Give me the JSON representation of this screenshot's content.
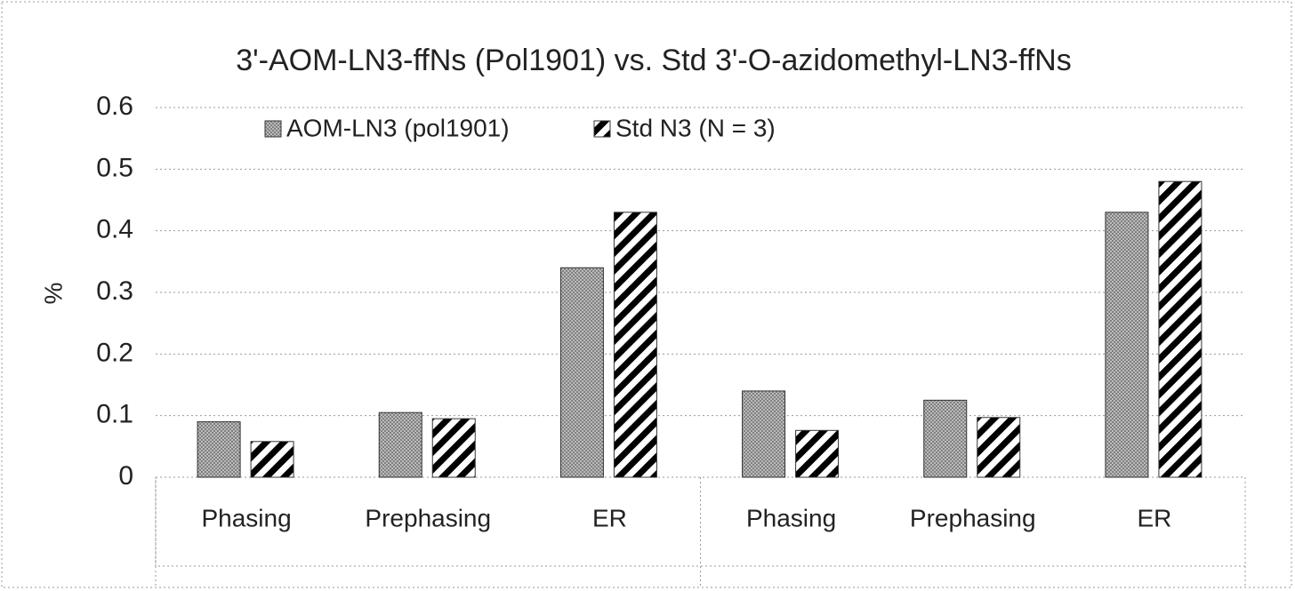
{
  "chart_data": {
    "type": "bar",
    "title": "3'-AOM-LN3-ffNs (Pol1901) vs. Std 3'-O-azidomethyl-LN3-ffNs",
    "y_label": "%",
    "categories": [
      "Phasing",
      "Prephasing",
      "ER",
      "Phasing",
      "Prephasing",
      "ER"
    ],
    "series": [
      {
        "name": "AOM-LN3 (pol1901)",
        "color": "#808080",
        "values": [
          0.09,
          0.105,
          0.34,
          0.14,
          0.125,
          0.43
        ]
      },
      {
        "name": "Std N3 (N = 3)",
        "color": "#000000",
        "values": [
          0.058,
          0.095,
          0.43,
          0.076,
          0.097,
          0.48
        ]
      }
    ],
    "ylim": [
      0,
      0.6
    ],
    "yticks": [
      0,
      0.1,
      0.2,
      0.3,
      0.4,
      0.5,
      0.6
    ],
    "grid": true
  }
}
